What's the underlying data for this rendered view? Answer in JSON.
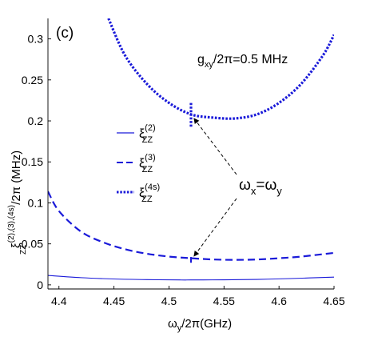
{
  "chart_data": {
    "type": "line",
    "panel_label": "(c)",
    "xlabel": {
      "main": "ω",
      "sub": "y",
      "rest": "/2π(GHz)"
    },
    "ylabel": {
      "main": "ξ",
      "sup": "(2),(3),(4s)",
      "sub": "ZZ",
      "rest": "/2π (MHz)"
    },
    "xlim": [
      4.39,
      4.65
    ],
    "ylim": [
      -0.005,
      0.325
    ],
    "x_ticks": [
      4.4,
      4.45,
      4.5,
      4.55,
      4.6,
      4.65
    ],
    "x_tick_labels": [
      "4.4",
      "4.45",
      "4.5",
      "4.55",
      "4.6",
      "4.65"
    ],
    "y_ticks": [
      0,
      0.05,
      0.1,
      0.15,
      0.2,
      0.25,
      0.3
    ],
    "y_tick_labels": [
      "0",
      "0.05",
      "0.1",
      "0.15",
      "0.2",
      "0.25",
      "0.3"
    ],
    "grid": false,
    "legend_placement": "left-middle",
    "color": "#1a1ad9",
    "series": [
      {
        "name": {
          "main": "ξ",
          "sup": "(2)",
          "sub": "ZZ"
        },
        "style": "solid",
        "x": [
          4.39,
          4.42,
          4.45,
          4.48,
          4.51,
          4.52,
          4.55,
          4.58,
          4.61,
          4.65
        ],
        "y": [
          0.0115,
          0.0088,
          0.0072,
          0.0064,
          0.006,
          0.006,
          0.0062,
          0.0067,
          0.0077,
          0.0095
        ]
      },
      {
        "name": {
          "main": "ξ",
          "sup": "(3)",
          "sub": "ZZ"
        },
        "style": "dashed",
        "x": [
          4.39,
          4.4,
          4.42,
          4.44,
          4.46,
          4.48,
          4.5,
          4.52,
          4.54,
          4.56,
          4.58,
          4.6,
          4.62,
          4.65
        ],
        "y": [
          0.114,
          0.09,
          0.065,
          0.052,
          0.0435,
          0.038,
          0.0345,
          0.0325,
          0.031,
          0.0305,
          0.031,
          0.0325,
          0.0345,
          0.039
        ]
      },
      {
        "name": {
          "main": "ξ",
          "sup": "(4s)",
          "sub": "ZZ"
        },
        "style": "dotted",
        "x": [
          4.445,
          4.46,
          4.48,
          4.5,
          4.52,
          4.54,
          4.56,
          4.58,
          4.6,
          4.62,
          4.64,
          4.65
        ],
        "y": [
          0.325,
          0.28,
          0.245,
          0.222,
          0.208,
          0.204,
          0.203,
          0.208,
          0.222,
          0.245,
          0.28,
          0.305
        ]
      }
    ],
    "glitch_markers": [
      {
        "series": 2,
        "x": 4.52,
        "y_low": 0.193,
        "y_high": 0.223
      },
      {
        "series": 1,
        "x": 4.52,
        "y_low": 0.027,
        "y_high": 0.034
      }
    ],
    "annotations": [
      {
        "text": "g",
        "sub": "xy",
        "rest": "/2π=0.5 MHz",
        "x": 4.5,
        "y": 0.275
      },
      {
        "text_parts": [
          "ω",
          "x",
          "=ω",
          "y"
        ],
        "x": 4.557,
        "y": 0.117,
        "arrows_to": [
          {
            "x": 4.522,
            "y": 0.205
          },
          {
            "x": 4.522,
            "y": 0.033
          }
        ]
      }
    ]
  }
}
